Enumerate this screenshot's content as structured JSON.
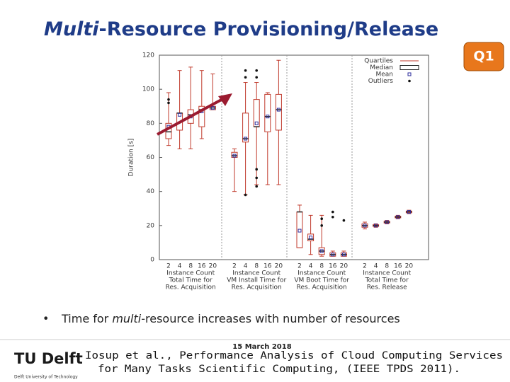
{
  "header": {
    "title_italic": "Multi",
    "title_rest": "-Resource Provisioning/Release",
    "badge": "Q1"
  },
  "chart_data": {
    "type": "box",
    "y_label": "Duration [s]",
    "ylim": [
      0,
      120
    ],
    "yticks": [
      0,
      20,
      40,
      60,
      80,
      100,
      120
    ],
    "box_color": "#c0392b",
    "mean_color": "#2c2c9c",
    "outlier_color": "#111111",
    "legend": {
      "position": "upper right",
      "entries": [
        "Quartiles",
        "Median",
        "Mean",
        "Outliers"
      ]
    },
    "groups": [
      {
        "label_lines": [
          "Instance Count",
          "Total Time for",
          "Res. Acquisition"
        ],
        "categories": [
          "2",
          "4",
          "8",
          "16",
          "20"
        ],
        "boxes": [
          {
            "min": 67,
            "q1": 71,
            "median": 75,
            "q3": 80,
            "max": 98,
            "mean": 78,
            "outliers": [
              94,
              92
            ]
          },
          {
            "min": 65,
            "q1": 76,
            "median": 86,
            "q3": 86,
            "max": 111,
            "mean": 85,
            "outliers": []
          },
          {
            "min": 65,
            "q1": 80,
            "median": 85,
            "q3": 88,
            "max": 113,
            "mean": 84,
            "outliers": []
          },
          {
            "min": 71,
            "q1": 78,
            "median": 88,
            "q3": 90,
            "max": 111,
            "mean": 87,
            "outliers": []
          },
          {
            "min": 88,
            "q1": 88,
            "median": 89,
            "q3": 90,
            "max": 109,
            "mean": 89,
            "outliers": []
          }
        ]
      },
      {
        "label_lines": [
          "Instance Count",
          "VM Install Time for",
          "Res. Acquisition"
        ],
        "categories": [
          "2",
          "4",
          "8",
          "16",
          "20"
        ],
        "boxes": [
          {
            "min": 40,
            "q1": 60,
            "median": 61,
            "q3": 63,
            "max": 65,
            "mean": 61,
            "outliers": []
          },
          {
            "min": 38,
            "q1": 69,
            "median": 71,
            "q3": 86,
            "max": 104,
            "mean": 71,
            "outliers": [
              111,
              107,
              38
            ]
          },
          {
            "min": 44,
            "q1": 78,
            "median": 78,
            "q3": 94,
            "max": 104,
            "mean": 80,
            "outliers": [
              111,
              107,
              53,
              48,
              43
            ]
          },
          {
            "min": 44,
            "q1": 75,
            "median": 84,
            "q3": 97,
            "max": 98,
            "mean": 84,
            "outliers": []
          },
          {
            "min": 44,
            "q1": 76,
            "median": 88,
            "q3": 97,
            "max": 117,
            "mean": 88,
            "outliers": []
          }
        ]
      },
      {
        "label_lines": [
          "Instance Count",
          "VM Boot Time for",
          "Res. Acquisition"
        ],
        "categories": [
          "2",
          "4",
          "8",
          "16",
          "20"
        ],
        "boxes": [
          {
            "min": 7,
            "q1": 7,
            "median": 28,
            "q3": 28,
            "max": 32,
            "mean": 17,
            "outliers": []
          },
          {
            "min": 3,
            "q1": 11,
            "median": 12,
            "q3": 15,
            "max": 26,
            "mean": 13,
            "outliers": []
          },
          {
            "min": 2,
            "q1": 3,
            "median": 5,
            "q3": 7,
            "max": 26,
            "mean": 5,
            "outliers": [
              24,
              20
            ]
          },
          {
            "min": 2,
            "q1": 2,
            "median": 3,
            "q3": 4,
            "max": 5,
            "mean": 3,
            "outliers": [
              28,
              25
            ]
          },
          {
            "min": 2,
            "q1": 2,
            "median": 3,
            "q3": 4,
            "max": 5,
            "mean": 3,
            "outliers": [
              23
            ]
          }
        ]
      },
      {
        "label_lines": [
          "Instance Count",
          "Total Time for",
          "Res. Release"
        ],
        "categories": [
          "2",
          "4",
          "8",
          "16",
          "20"
        ],
        "boxes": [
          {
            "min": 18,
            "q1": 19,
            "median": 20,
            "q3": 21,
            "max": 22,
            "mean": 20,
            "outliers": []
          },
          {
            "min": 19,
            "q1": 19.5,
            "median": 20,
            "q3": 20.5,
            "max": 21,
            "mean": 20,
            "outliers": []
          },
          {
            "min": 21,
            "q1": 21.5,
            "median": 22,
            "q3": 22.5,
            "max": 23,
            "mean": 22,
            "outliers": []
          },
          {
            "min": 24,
            "q1": 24.5,
            "median": 25,
            "q3": 25.5,
            "max": 26,
            "mean": 25,
            "outliers": []
          },
          {
            "min": 27,
            "q1": 27.5,
            "median": 28,
            "q3": 28.5,
            "max": 29,
            "mean": 28,
            "outliers": []
          }
        ]
      }
    ]
  },
  "bullet": {
    "before": "Time for ",
    "italic": "multi",
    "after": "-resource increases with number of resources"
  },
  "footer": {
    "date": "15 March 2018",
    "logo_main": "TU Delft",
    "logo_sub": "Delft University of Technology",
    "citation_lines": [
      "Iosup et al., Performance Analysis of Cloud Computing Services",
      "for Many Tasks Scientific Computing, (IEEE TPDS 2011)."
    ]
  }
}
